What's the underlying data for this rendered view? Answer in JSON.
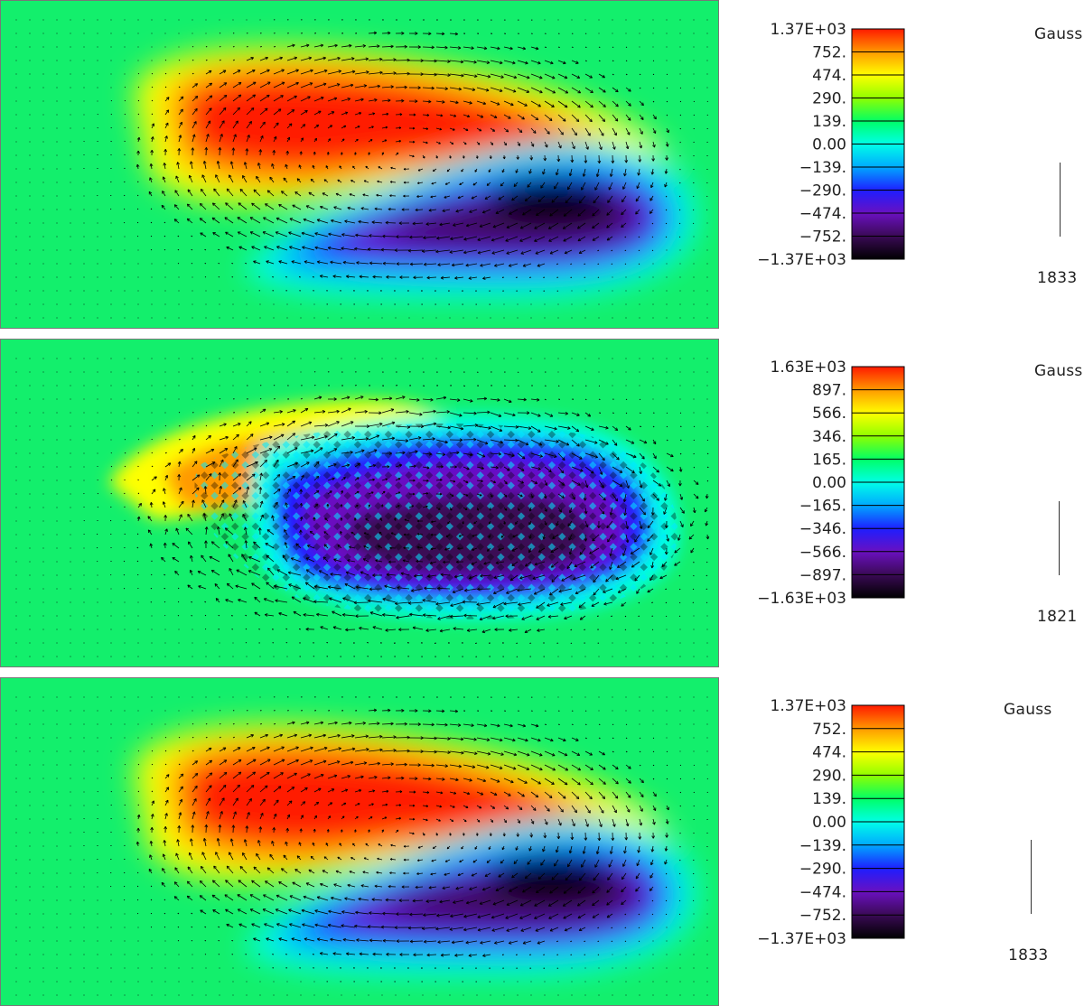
{
  "chart_data": [
    {
      "type": "heatmap",
      "variant": "smooth",
      "unit_label": "Gauss",
      "reference_vector_label": "1833",
      "colorbar": {
        "labels": [
          "1.37E+03",
          "752.",
          "474.",
          "290.",
          "139.",
          "0.00",
          "−139.",
          "−290.",
          "−474.",
          "−752.",
          "−1.37E+03"
        ],
        "values": [
          1370,
          752,
          474,
          290,
          139,
          0,
          -139,
          -290,
          -474,
          -752,
          -1370
        ]
      },
      "field_lobes": [
        {
          "sign": "positive",
          "peak": 1370,
          "center_xy": [
            0.36,
            0.33
          ]
        },
        {
          "sign": "negative",
          "peak": -1370,
          "center_xy": [
            0.77,
            0.6
          ]
        }
      ]
    },
    {
      "type": "heatmap",
      "variant": "noisy",
      "unit_label": "Gauss",
      "reference_vector_label": "1821",
      "colorbar": {
        "labels": [
          "1.63E+03",
          "897.",
          "566.",
          "346.",
          "165.",
          "0.00",
          "−165.",
          "−346.",
          "−566.",
          "−897.",
          "−1.63E+03"
        ],
        "values": [
          1630,
          897,
          566,
          346,
          165,
          0,
          -165,
          -346,
          -566,
          -897,
          -1630
        ]
      },
      "field_lobes": [
        {
          "sign": "positive",
          "peak": 566,
          "center_xy": [
            0.36,
            0.4
          ]
        },
        {
          "sign": "negative",
          "peak": -1630,
          "center_xy": [
            0.62,
            0.55
          ]
        }
      ]
    },
    {
      "type": "heatmap",
      "variant": "smooth",
      "unit_label": "Gauss",
      "reference_vector_label": "1833",
      "colorbar": {
        "labels": [
          "1.37E+03",
          "752.",
          "474.",
          "290.",
          "139.",
          "0.00",
          "−139.",
          "−290.",
          "−474.",
          "−752.",
          "−1.37E+03"
        ],
        "values": [
          1370,
          752,
          474,
          290,
          139,
          0,
          -139,
          -290,
          -474,
          -752,
          -1370
        ]
      },
      "field_lobes": [
        {
          "sign": "positive",
          "peak": 1370,
          "center_xy": [
            0.36,
            0.33
          ]
        },
        {
          "sign": "negative",
          "peak": -1370,
          "center_xy": [
            0.77,
            0.6
          ]
        }
      ]
    }
  ],
  "colors": {
    "scale": [
      "#000000",
      "#3a0a55",
      "#6a10c0",
      "#1e1eff",
      "#00a8ff",
      "#00ffe8",
      "#00ff66",
      "#8fff00",
      "#ffff00",
      "#ff9a00",
      "#ff1a00"
    ],
    "background_field": "#13ef6c",
    "arrows": "#000000"
  }
}
